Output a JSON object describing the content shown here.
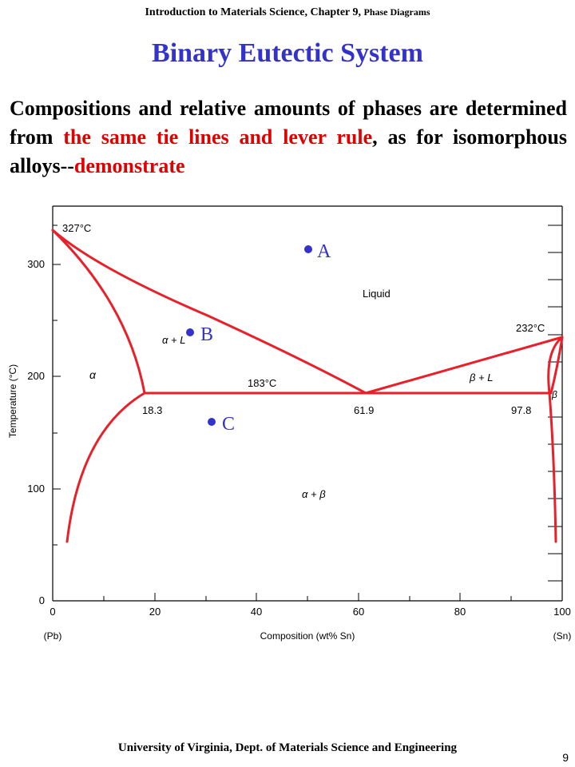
{
  "header": {
    "course": "Introduction to Materials Science, Chapter 9, ",
    "chapter_topic": "Phase Diagrams"
  },
  "title": "Binary Eutectic System",
  "body": {
    "part1": "Compositions and relative amounts of phases are determined from ",
    "part2_red": "the same tie lines and lever rule",
    "part3": ", as for isomorphous alloys--",
    "part4_red": "demonstrate"
  },
  "diagram": {
    "ylabel": "Temperature (°C)",
    "xlabel": "Composition (wt% Sn)",
    "y_ticks": [
      "0",
      "100",
      "200",
      "300"
    ],
    "x_ticks": [
      "0",
      "20",
      "40",
      "60",
      "80",
      "100"
    ],
    "x_end_labels": {
      "left": "(Pb)",
      "right": "(Sn)"
    },
    "labels": {
      "pb_melt": "327°C",
      "sn_melt": "232°C",
      "eutectic_temp": "183°C",
      "c_alpha": "18.3",
      "c_eutectic": "61.9",
      "c_beta": "97.8",
      "liquid": "Liquid",
      "alpha": "α",
      "beta": "β",
      "alpha_L": "α + L",
      "beta_L": "β + L",
      "alpha_beta": "α + β"
    },
    "points": [
      {
        "label": "A",
        "composition": 50.5,
        "temperature": 312
      },
      {
        "label": "B",
        "composition": 27,
        "temperature": 238
      },
      {
        "label": "C",
        "composition": 31.5,
        "temperature": 159
      }
    ],
    "colors": {
      "phase_lines": "#e8202a",
      "points": "#3333cc"
    }
  },
  "footer": "University of Virginia, Dept. of Materials Science and Engineering",
  "page_number": "9"
}
